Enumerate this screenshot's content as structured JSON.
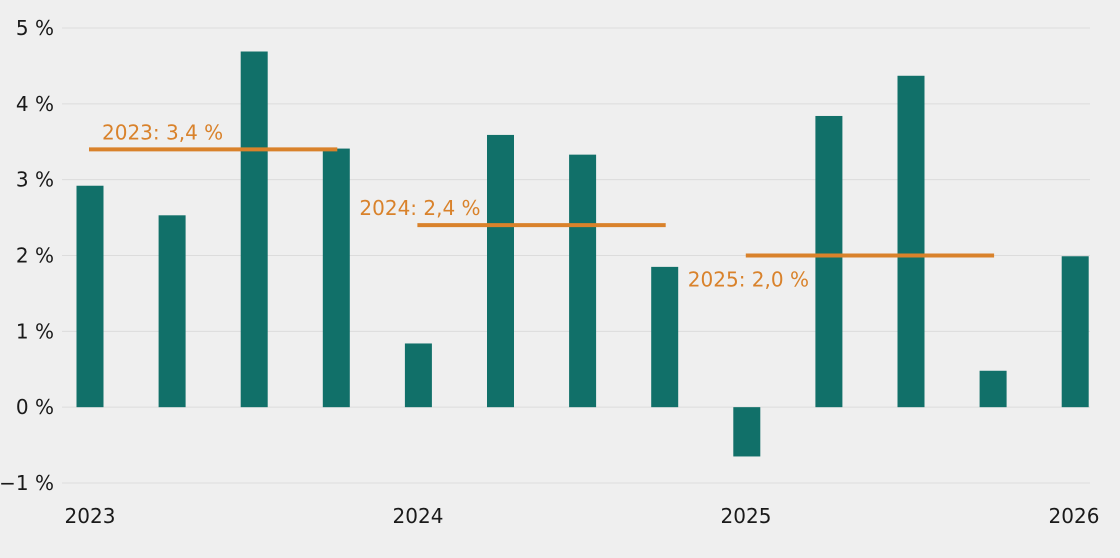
{
  "chart_data": {
    "type": "bar",
    "y_ticks": [
      {
        "value": 5,
        "label": "5 %"
      },
      {
        "value": 4,
        "label": "4 %"
      },
      {
        "value": 3,
        "label": "3 %"
      },
      {
        "value": 2,
        "label": "2 %"
      },
      {
        "value": 1,
        "label": "1 %"
      },
      {
        "value": 0,
        "label": "0 %"
      },
      {
        "value": -1,
        "label": "−1 %"
      }
    ],
    "x_ticks": [
      "2023",
      "2024",
      "2025",
      "2026"
    ],
    "ylim": [
      -1,
      5
    ],
    "grid": true,
    "values": [
      2.92,
      2.53,
      4.69,
      3.41,
      0.84,
      3.59,
      3.33,
      1.85,
      -0.65,
      3.84,
      4.37,
      0.48,
      1.99
    ],
    "annual_averages": [
      {
        "label": "2023: 3,4 %",
        "value": 3.4,
        "from_bar": 0,
        "to_bar": 3
      },
      {
        "label": "2024: 2,4 %",
        "value": 2.4,
        "from_bar": 4,
        "to_bar": 7
      },
      {
        "label": "2025: 2,0 %",
        "value": 2.0,
        "from_bar": 8,
        "to_bar": 11
      }
    ],
    "colors": {
      "bar": "#117069",
      "average": "#d9822b",
      "grid": "#dcdcdc"
    }
  }
}
